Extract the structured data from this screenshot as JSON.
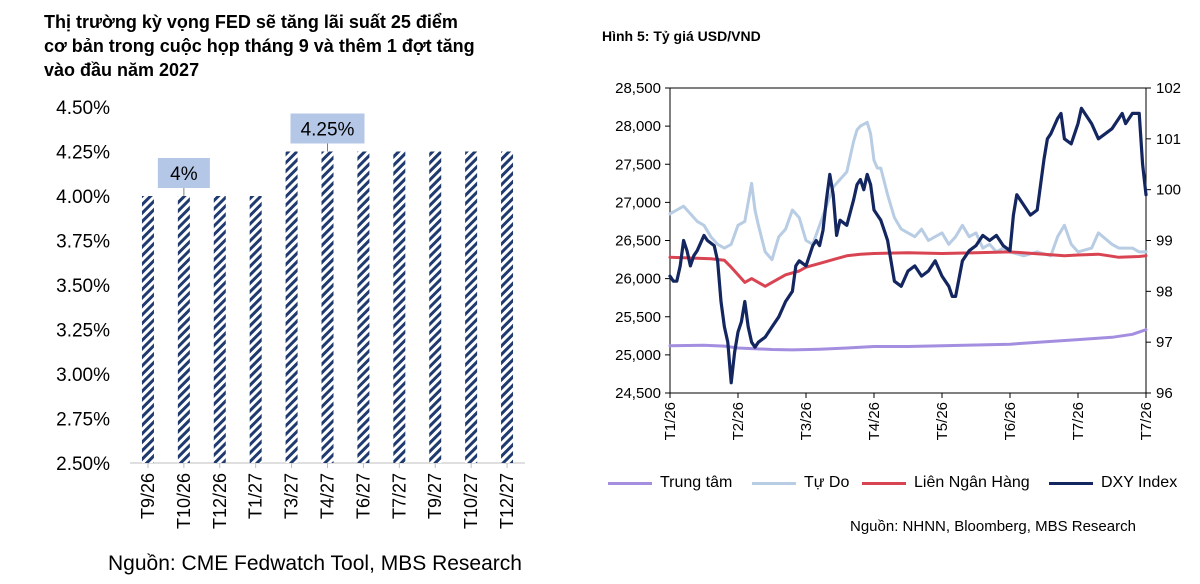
{
  "left_chart": {
    "title_lines": [
      "Thị trường kỳ vọng FED sẽ tăng lãi suất 25 điểm",
      "cơ bản trong cuộc họp tháng 9 và thêm 1 đợt tăng",
      "vào đầu năm 2027"
    ],
    "source": "Nguồn: CME Fedwatch Tool, MBS Research"
  },
  "right_chart": {
    "title": "Hình 5: Tỷ giá USD/VND",
    "source": "Nguồn: NHNN, Bloomberg, MBS Research"
  },
  "chart_data": [
    {
      "type": "bar",
      "categories": [
        "T9/26",
        "T10/26",
        "T12/26",
        "T1/27",
        "T3/27",
        "T4/27",
        "T6/27",
        "T7/27",
        "T9/27",
        "T10/27",
        "T12/27"
      ],
      "values": [
        4.0,
        4.0,
        4.0,
        4.0,
        4.25,
        4.25,
        4.25,
        4.25,
        4.25,
        4.25,
        4.25
      ],
      "ylim": [
        2.5,
        4.5
      ],
      "yticks": [
        "2.50%",
        "2.75%",
        "3.00%",
        "3.25%",
        "3.50%",
        "3.75%",
        "4.00%",
        "4.25%",
        "4.50%"
      ],
      "annotations": [
        {
          "label": "4%",
          "category": "T10/26"
        },
        {
          "label": "4.25%",
          "category": "T4/27"
        }
      ],
      "bar_color": "#1f3a6e",
      "grid": false
    },
    {
      "type": "line",
      "x_ticks": [
        "T1/26",
        "T2/26",
        "T3/26",
        "T4/26",
        "T5/26",
        "T6/26",
        "T7/26",
        "T7/26"
      ],
      "y_left": {
        "ylim": [
          24500,
          28500
        ],
        "ticks": [
          "24,500",
          "25,000",
          "25,500",
          "26,000",
          "26,500",
          "27,000",
          "27,500",
          "28,000",
          "28,500"
        ]
      },
      "y_right": {
        "ylim": [
          96,
          102
        ],
        "ticks": [
          "96",
          "97",
          "98",
          "99",
          "100",
          "101",
          "102"
        ]
      },
      "grid": false,
      "legend_position": "bottom",
      "series": [
        {
          "name": "Trung tâm",
          "axis": "left",
          "color": "#a48ee0",
          "points": [
            [
              0,
              25120
            ],
            [
              0.5,
              25125
            ],
            [
              0.8,
              25115
            ],
            [
              1.0,
              25090
            ],
            [
              1.5,
              25070
            ],
            [
              1.8,
              25065
            ],
            [
              2.2,
              25075
            ],
            [
              2.6,
              25090
            ],
            [
              3.0,
              25110
            ],
            [
              3.5,
              25110
            ],
            [
              4.0,
              25120
            ],
            [
              4.5,
              25130
            ],
            [
              5.0,
              25140
            ],
            [
              5.5,
              25170
            ],
            [
              6.0,
              25200
            ],
            [
              6.5,
              25230
            ],
            [
              6.8,
              25270
            ],
            [
              7.0,
              25330
            ]
          ]
        },
        {
          "name": "Tự Do",
          "axis": "left",
          "color": "#b8cce4",
          "points": [
            [
              0,
              26850
            ],
            [
              0.1,
              26900
            ],
            [
              0.2,
              26950
            ],
            [
              0.3,
              26850
            ],
            [
              0.4,
              26750
            ],
            [
              0.5,
              26700
            ],
            [
              0.6,
              26550
            ],
            [
              0.7,
              26450
            ],
            [
              0.8,
              26400
            ],
            [
              0.9,
              26450
            ],
            [
              1.0,
              26700
            ],
            [
              1.1,
              26750
            ],
            [
              1.15,
              27000
            ],
            [
              1.2,
              27250
            ],
            [
              1.25,
              26900
            ],
            [
              1.3,
              26700
            ],
            [
              1.4,
              26350
            ],
            [
              1.5,
              26250
            ],
            [
              1.6,
              26550
            ],
            [
              1.7,
              26650
            ],
            [
              1.8,
              26900
            ],
            [
              1.9,
              26800
            ],
            [
              2.0,
              26500
            ],
            [
              2.1,
              26450
            ],
            [
              2.2,
              26700
            ],
            [
              2.3,
              26950
            ],
            [
              2.4,
              27200
            ],
            [
              2.5,
              27300
            ],
            [
              2.6,
              27400
            ],
            [
              2.7,
              27800
            ],
            [
              2.75,
              27950
            ],
            [
              2.8,
              28000
            ],
            [
              2.9,
              28050
            ],
            [
              2.95,
              27900
            ],
            [
              3.0,
              27550
            ],
            [
              3.05,
              27450
            ],
            [
              3.1,
              27450
            ],
            [
              3.2,
              27100
            ],
            [
              3.3,
              26800
            ],
            [
              3.4,
              26650
            ],
            [
              3.5,
              26600
            ],
            [
              3.6,
              26550
            ],
            [
              3.7,
              26650
            ],
            [
              3.8,
              26500
            ],
            [
              3.9,
              26550
            ],
            [
              4.0,
              26600
            ],
            [
              4.1,
              26450
            ],
            [
              4.2,
              26550
            ],
            [
              4.3,
              26700
            ],
            [
              4.4,
              26550
            ],
            [
              4.5,
              26600
            ],
            [
              4.6,
              26400
            ],
            [
              4.7,
              26450
            ],
            [
              4.8,
              26350
            ],
            [
              4.9,
              26400
            ],
            [
              5.0,
              26350
            ],
            [
              5.2,
              26300
            ],
            [
              5.4,
              26350
            ],
            [
              5.6,
              26300
            ],
            [
              5.7,
              26550
            ],
            [
              5.8,
              26700
            ],
            [
              5.9,
              26450
            ],
            [
              6.0,
              26350
            ],
            [
              6.2,
              26400
            ],
            [
              6.3,
              26600
            ],
            [
              6.5,
              26450
            ],
            [
              6.6,
              26400
            ],
            [
              6.8,
              26400
            ],
            [
              6.9,
              26350
            ],
            [
              7.0,
              26350
            ]
          ]
        },
        {
          "name": "Liên Ngân Hàng",
          "axis": "left",
          "color": "#d94452",
          "points": [
            [
              0,
              26280
            ],
            [
              0.3,
              26270
            ],
            [
              0.6,
              26260
            ],
            [
              0.8,
              26240
            ],
            [
              0.9,
              26150
            ],
            [
              1.0,
              26050
            ],
            [
              1.1,
              25950
            ],
            [
              1.2,
              26000
            ],
            [
              1.3,
              25950
            ],
            [
              1.4,
              25900
            ],
            [
              1.5,
              25950
            ],
            [
              1.7,
              26050
            ],
            [
              1.9,
              26100
            ],
            [
              2.0,
              26150
            ],
            [
              2.2,
              26200
            ],
            [
              2.4,
              26250
            ],
            [
              2.6,
              26300
            ],
            [
              2.8,
              26320
            ],
            [
              3.0,
              26330
            ],
            [
              3.5,
              26340
            ],
            [
              4.0,
              26330
            ],
            [
              4.5,
              26340
            ],
            [
              5.0,
              26350
            ],
            [
              5.5,
              26320
            ],
            [
              5.8,
              26300
            ],
            [
              6.0,
              26310
            ],
            [
              6.3,
              26320
            ],
            [
              6.6,
              26280
            ],
            [
              6.9,
              26290
            ],
            [
              7.0,
              26300
            ]
          ]
        },
        {
          "name": "DXY Index",
          "axis": "right",
          "color": "#142660",
          "points": [
            [
              0,
              98.3
            ],
            [
              0.05,
              98.2
            ],
            [
              0.1,
              98.2
            ],
            [
              0.15,
              98.5
            ],
            [
              0.2,
              99.0
            ],
            [
              0.25,
              98.8
            ],
            [
              0.3,
              98.5
            ],
            [
              0.35,
              98.7
            ],
            [
              0.4,
              98.8
            ],
            [
              0.5,
              99.1
            ],
            [
              0.55,
              99.0
            ],
            [
              0.65,
              98.9
            ],
            [
              0.7,
              98.6
            ],
            [
              0.75,
              97.8
            ],
            [
              0.8,
              97.3
            ],
            [
              0.85,
              97.0
            ],
            [
              0.9,
              96.2
            ],
            [
              0.95,
              96.8
            ],
            [
              1.0,
              97.2
            ],
            [
              1.05,
              97.4
            ],
            [
              1.1,
              97.8
            ],
            [
              1.15,
              97.3
            ],
            [
              1.2,
              97.0
            ],
            [
              1.25,
              96.9
            ],
            [
              1.3,
              97.0
            ],
            [
              1.4,
              97.1
            ],
            [
              1.5,
              97.3
            ],
            [
              1.6,
              97.5
            ],
            [
              1.7,
              97.8
            ],
            [
              1.8,
              98.0
            ],
            [
              1.85,
              98.5
            ],
            [
              1.9,
              98.6
            ],
            [
              2.0,
              98.5
            ],
            [
              2.1,
              98.9
            ],
            [
              2.15,
              99.0
            ],
            [
              2.2,
              98.9
            ],
            [
              2.25,
              99.2
            ],
            [
              2.3,
              99.8
            ],
            [
              2.35,
              100.3
            ],
            [
              2.4,
              99.9
            ],
            [
              2.45,
              99.1
            ],
            [
              2.5,
              99.4
            ],
            [
              2.6,
              99.3
            ],
            [
              2.7,
              99.8
            ],
            [
              2.75,
              100.1
            ],
            [
              2.8,
              100.2
            ],
            [
              2.85,
              100.0
            ],
            [
              2.9,
              100.3
            ],
            [
              2.95,
              100.1
            ],
            [
              3.0,
              99.6
            ],
            [
              3.05,
              99.5
            ],
            [
              3.1,
              99.4
            ],
            [
              3.15,
              99.2
            ],
            [
              3.2,
              99.0
            ],
            [
              3.3,
              98.2
            ],
            [
              3.4,
              98.1
            ],
            [
              3.5,
              98.4
            ],
            [
              3.6,
              98.5
            ],
            [
              3.7,
              98.3
            ],
            [
              3.8,
              98.4
            ],
            [
              3.9,
              98.6
            ],
            [
              4.0,
              98.3
            ],
            [
              4.1,
              98.1
            ],
            [
              4.15,
              97.9
            ],
            [
              4.2,
              97.9
            ],
            [
              4.3,
              98.6
            ],
            [
              4.4,
              98.8
            ],
            [
              4.5,
              98.9
            ],
            [
              4.6,
              99.1
            ],
            [
              4.7,
              99.0
            ],
            [
              4.8,
              99.1
            ],
            [
              4.9,
              98.9
            ],
            [
              5.0,
              98.8
            ],
            [
              5.05,
              99.5
            ],
            [
              5.1,
              99.9
            ],
            [
              5.15,
              99.8
            ],
            [
              5.2,
              99.7
            ],
            [
              5.3,
              99.5
            ],
            [
              5.4,
              99.6
            ],
            [
              5.5,
              100.6
            ],
            [
              5.55,
              101.0
            ],
            [
              5.6,
              101.1
            ],
            [
              5.7,
              101.4
            ],
            [
              5.75,
              101.5
            ],
            [
              5.8,
              101.0
            ],
            [
              5.9,
              100.9
            ],
            [
              6.0,
              101.3
            ],
            [
              6.05,
              101.6
            ],
            [
              6.1,
              101.5
            ],
            [
              6.2,
              101.3
            ],
            [
              6.3,
              101.0
            ],
            [
              6.4,
              101.1
            ],
            [
              6.5,
              101.2
            ],
            [
              6.6,
              101.4
            ],
            [
              6.65,
              101.5
            ],
            [
              6.7,
              101.3
            ],
            [
              6.8,
              101.5
            ],
            [
              6.9,
              101.5
            ],
            [
              6.95,
              100.5
            ],
            [
              7.0,
              99.9
            ]
          ]
        }
      ]
    }
  ]
}
